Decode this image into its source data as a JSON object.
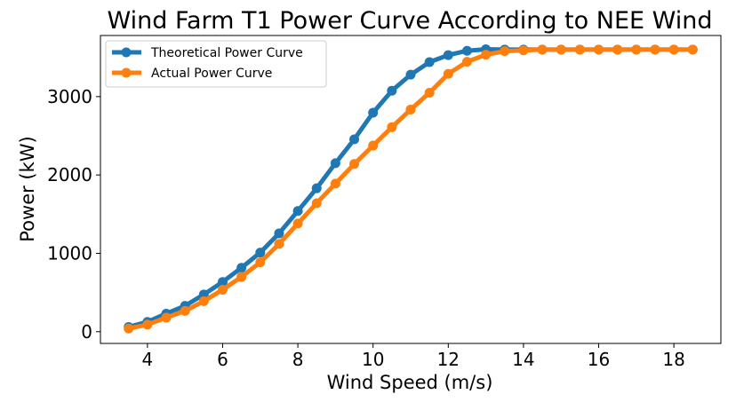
{
  "chart_data": {
    "type": "line",
    "title": "Wind Farm T1 Power Curve According to NEE Wind",
    "xlabel": "Wind Speed (m/s)",
    "ylabel": "Power (kW)",
    "xlim": [
      2.75,
      19.25
    ],
    "ylim": [
      -150,
      3780
    ],
    "xticks": [
      4,
      6,
      8,
      10,
      12,
      14,
      16,
      18
    ],
    "yticks": [
      0,
      1000,
      2000,
      3000
    ],
    "grid": false,
    "legend": "top-left",
    "x": [
      3.5,
      4,
      4.5,
      5,
      5.5,
      6,
      6.5,
      7,
      7.5,
      8,
      8.5,
      9,
      9.5,
      10,
      10.5,
      11,
      11.5,
      12,
      12.5,
      13,
      13.5,
      14,
      14.5,
      15,
      15.5,
      16,
      16.5,
      17,
      17.5,
      18,
      18.5
    ],
    "series": [
      {
        "name": "Theoretical Power Curve",
        "color": "#1f77b4",
        "values": [
          60,
          125,
          230,
          330,
          475,
          635,
          815,
          1010,
          1255,
          1540,
          1830,
          2150,
          2455,
          2795,
          3075,
          3280,
          3440,
          3530,
          3585,
          3605,
          3600,
          3600,
          3600,
          3600,
          3600,
          3600,
          3600,
          3600,
          3600,
          3600,
          3600
        ]
      },
      {
        "name": "Actual Power Curve",
        "color": "#ff7f0e",
        "values": [
          40,
          90,
          180,
          265,
          390,
          535,
          700,
          885,
          1120,
          1380,
          1640,
          1890,
          2140,
          2375,
          2610,
          2835,
          3050,
          3290,
          3445,
          3535,
          3580,
          3590,
          3600,
          3600,
          3600,
          3600,
          3600,
          3600,
          3600,
          3600,
          3600
        ]
      }
    ]
  }
}
